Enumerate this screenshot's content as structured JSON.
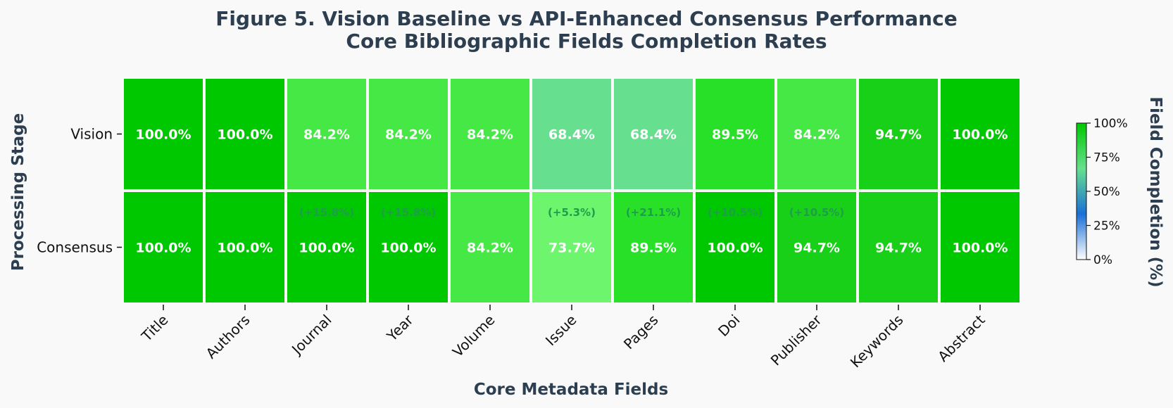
{
  "chart_data": {
    "type": "heatmap",
    "title": "Figure 5. Vision Baseline vs API-Enhanced Consensus Performance",
    "subtitle": "Core Bibliographic Fields Completion Rates",
    "xlabel": "Core Metadata Fields",
    "ylabel": "Processing Stage",
    "colorbar_label": "Field Completion (%)",
    "colorbar_ticks": [
      "0%",
      "25%",
      "50%",
      "75%",
      "100%"
    ],
    "colorbar_range": [
      0,
      100
    ],
    "rows": [
      "Vision",
      "Consensus"
    ],
    "columns": [
      "Title",
      "Authors",
      "Journal",
      "Year",
      "Volume",
      "Issue",
      "Pages",
      "Doi",
      "Publisher",
      "Keywords",
      "Abstract"
    ],
    "values": [
      [
        100.0,
        100.0,
        84.2,
        84.2,
        84.2,
        68.4,
        68.4,
        89.5,
        84.2,
        94.7,
        100.0
      ],
      [
        100.0,
        100.0,
        100.0,
        100.0,
        84.2,
        73.7,
        89.5,
        100.0,
        94.7,
        94.7,
        100.0
      ]
    ],
    "cell_labels": [
      [
        "100.0%",
        "100.0%",
        "84.2%",
        "84.2%",
        "84.2%",
        "68.4%",
        "68.4%",
        "89.5%",
        "84.2%",
        "94.7%",
        "100.0%"
      ],
      [
        "100.0%",
        "100.0%",
        "100.0%",
        "100.0%",
        "84.2%",
        "73.7%",
        "89.5%",
        "100.0%",
        "94.7%",
        "94.7%",
        "100.0%"
      ]
    ],
    "improvement_labels": [
      "",
      "",
      "(+15.8%)",
      "(+15.8%)",
      "",
      "(+5.3%)",
      "(+21.1%)",
      "(+10.5%)",
      "(+10.5%)",
      "",
      ""
    ],
    "colors": {
      "vision": [
        "#00c800",
        "#00c800",
        "#45e845",
        "#45e845",
        "#45e845",
        "#66e08f",
        "#66e08f",
        "#28e028",
        "#45e845",
        "#19d019",
        "#00c800"
      ],
      "consensus": [
        "#00c800",
        "#00c800",
        "#00c800",
        "#00c800",
        "#45e845",
        "#6ef56e",
        "#28e028",
        "#00c800",
        "#19d019",
        "#19d019",
        "#00c800"
      ],
      "colorbar_stops": [
        "#ffffff",
        "#1a6fd6",
        "#66e08f",
        "#00c800"
      ],
      "title": "#2c3e50",
      "improvement": "#1e9e4a"
    }
  }
}
